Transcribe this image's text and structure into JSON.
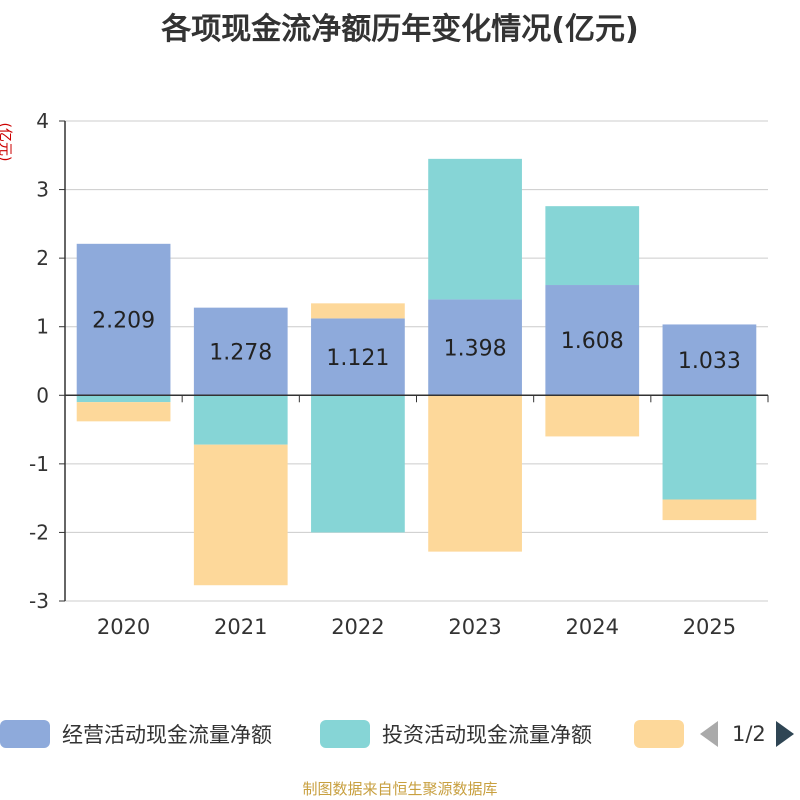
{
  "chart_data": {
    "type": "bar",
    "stacked": true,
    "title": "各项现金流净额历年变化情况(亿元)",
    "ylabel": "(亿元)",
    "categories": [
      "2020",
      "2021",
      "2022",
      "2023",
      "2024",
      "2025"
    ],
    "ylim": [
      -3,
      4
    ],
    "yticks": [
      4,
      3,
      2,
      1,
      0,
      -1,
      -2,
      -3
    ],
    "series": [
      {
        "name": "经营活动现金流量净额",
        "color": "#8eaadb",
        "values": [
          2.209,
          1.278,
          1.121,
          1.398,
          1.608,
          1.033
        ],
        "labeled": true
      },
      {
        "name": "投资活动现金流量净额",
        "color": "#86d5d6",
        "values": [
          -0.1,
          -0.72,
          -2.0,
          2.05,
          1.15,
          -1.52
        ]
      },
      {
        "name": "",
        "color": "#fdd89a",
        "values": [
          -0.28,
          -2.05,
          0.22,
          -2.28,
          -0.6,
          -0.3
        ]
      }
    ]
  },
  "legend": {
    "pager": "1/2"
  },
  "source": "制图数据来自恒生聚源数据库"
}
